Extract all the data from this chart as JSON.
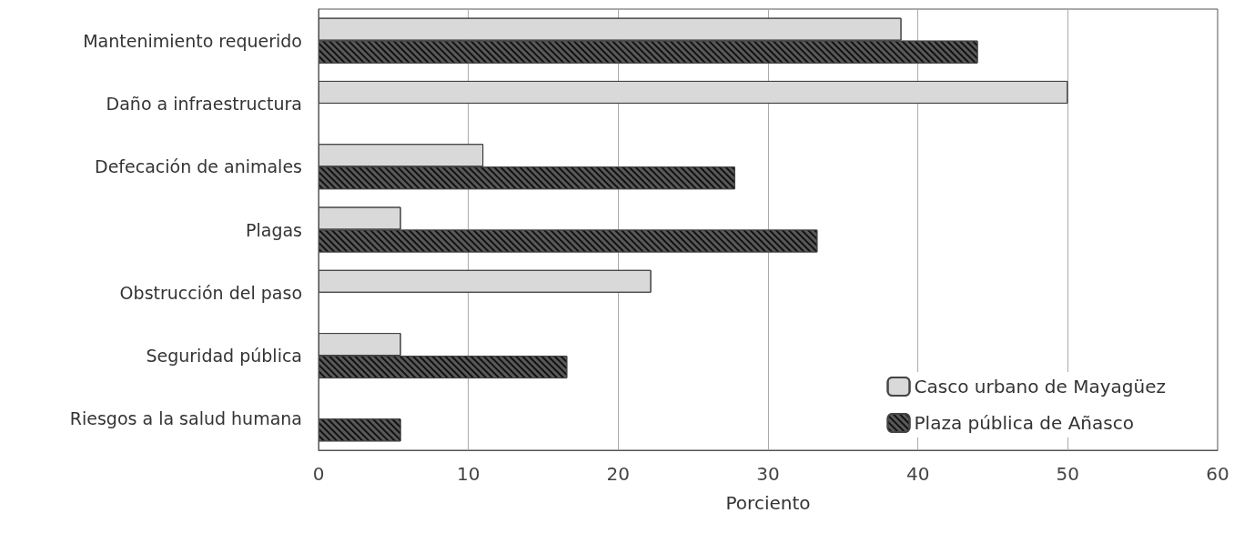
{
  "chart_data": {
    "type": "bar",
    "orientation": "horizontal",
    "xlabel": "Porciento",
    "categories": [
      "Mantenimiento requerido",
      "Daño a infraestructura",
      "Defecación de animales",
      "Plagas",
      "Obstrucción del paso",
      "Seguridad pública",
      "Riesgos a la salud humana"
    ],
    "series": [
      {
        "name": "Casco urbano de Mayagüez",
        "color": "#d9d9d9",
        "values": [
          38.9,
          50,
          11.0,
          5.5,
          22.2,
          5.5,
          null
        ]
      },
      {
        "name": "Plaza pública de Añasco",
        "color": "#595959",
        "values": [
          44.0,
          null,
          27.8,
          33.3,
          null,
          16.6,
          5.5
        ]
      }
    ],
    "xlim": [
      0,
      60
    ],
    "xticks": [
      0,
      10,
      20,
      30,
      40,
      50,
      60
    ],
    "grid": "x",
    "legend": "bottom right"
  }
}
